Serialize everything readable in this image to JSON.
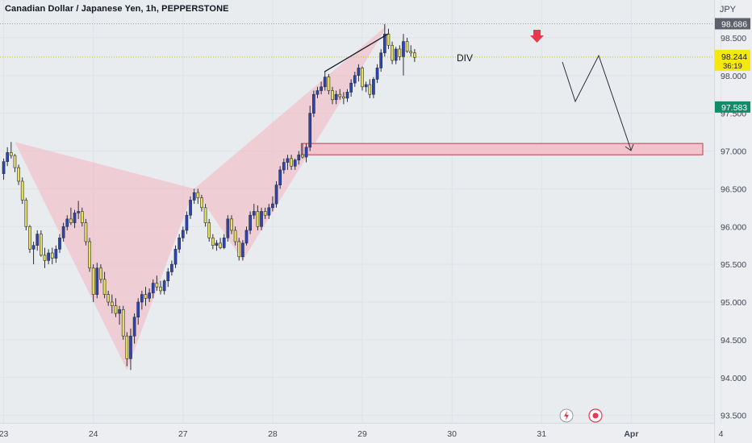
{
  "chart_data": {
    "type": "candlestick",
    "title": "Canadian Dollar / Japanese Yen, 1h, PEPPERSTONE",
    "currency": "JPY",
    "ylim": [
      93.4,
      99.0
    ],
    "y_ticks": [
      93.5,
      94.0,
      94.5,
      95.0,
      95.5,
      96.0,
      96.5,
      97.0,
      97.5,
      98.0,
      98.5
    ],
    "y_tick_labels": [
      "93.500",
      "94.000",
      "94.500",
      "95.000",
      "95.500",
      "96.000",
      "96.500",
      "97.000",
      "97.500",
      "98.000",
      "98.500"
    ],
    "x_ticks": [
      0,
      24,
      48,
      72,
      96,
      120,
      144,
      168,
      192
    ],
    "x_tick_labels": [
      "23",
      "24",
      "27",
      "28",
      "29",
      "30",
      "31",
      "Apr",
      "4"
    ],
    "candles": [
      [
        96.7,
        96.9,
        96.62,
        96.86
      ],
      [
        96.86,
        97.05,
        96.8,
        96.98
      ],
      [
        96.98,
        97.12,
        96.9,
        96.94
      ],
      [
        96.94,
        96.96,
        96.72,
        96.78
      ],
      [
        96.78,
        96.82,
        96.55,
        96.6
      ],
      [
        96.6,
        96.65,
        96.3,
        96.35
      ],
      [
        96.35,
        96.38,
        95.95,
        96.0
      ],
      [
        96.0,
        96.02,
        95.65,
        95.7
      ],
      [
        95.7,
        95.8,
        95.5,
        95.75
      ],
      [
        95.75,
        95.95,
        95.68,
        95.9
      ],
      [
        95.9,
        95.95,
        95.6,
        95.62
      ],
      [
        95.62,
        95.72,
        95.45,
        95.55
      ],
      [
        95.55,
        95.7,
        95.5,
        95.65
      ],
      [
        95.65,
        95.72,
        95.5,
        95.58
      ],
      [
        95.58,
        95.75,
        95.52,
        95.7
      ],
      [
        95.7,
        95.9,
        95.65,
        95.85
      ],
      [
        95.85,
        96.05,
        95.8,
        96.0
      ],
      [
        96.0,
        96.15,
        95.95,
        96.1
      ],
      [
        96.1,
        96.25,
        96.02,
        96.05
      ],
      [
        96.05,
        96.22,
        95.98,
        96.18
      ],
      [
        96.18,
        96.34,
        96.1,
        96.2
      ],
      [
        96.2,
        96.25,
        96.0,
        96.05
      ],
      [
        96.05,
        96.1,
        95.75,
        95.8
      ],
      [
        95.8,
        95.85,
        95.4,
        95.45
      ],
      [
        95.45,
        95.5,
        95.0,
        95.1
      ],
      [
        95.1,
        95.52,
        95.05,
        95.45
      ],
      [
        95.45,
        95.5,
        95.25,
        95.3
      ],
      [
        95.3,
        95.4,
        95.05,
        95.1
      ],
      [
        95.1,
        95.15,
        94.95,
        95.0
      ],
      [
        95.0,
        95.1,
        94.85,
        94.95
      ],
      [
        94.95,
        95.05,
        94.8,
        94.85
      ],
      [
        94.85,
        94.95,
        94.7,
        94.9
      ],
      [
        94.9,
        94.95,
        94.5,
        94.55
      ],
      [
        94.55,
        94.6,
        94.15,
        94.25
      ],
      [
        94.25,
        94.65,
        94.1,
        94.55
      ],
      [
        94.55,
        94.85,
        94.45,
        94.8
      ],
      [
        94.8,
        95.05,
        94.7,
        95.0
      ],
      [
        95.0,
        95.15,
        94.9,
        95.1
      ],
      [
        95.1,
        95.2,
        94.95,
        95.05
      ],
      [
        95.05,
        95.18,
        95.0,
        95.12
      ],
      [
        95.12,
        95.3,
        95.05,
        95.25
      ],
      [
        95.25,
        95.35,
        95.15,
        95.2
      ],
      [
        95.2,
        95.28,
        95.1,
        95.15
      ],
      [
        95.15,
        95.3,
        95.1,
        95.28
      ],
      [
        95.28,
        95.45,
        95.2,
        95.4
      ],
      [
        95.4,
        95.55,
        95.35,
        95.5
      ],
      [
        95.5,
        95.75,
        95.45,
        95.7
      ],
      [
        95.7,
        95.9,
        95.65,
        95.85
      ],
      [
        95.85,
        96.0,
        95.8,
        95.95
      ],
      [
        95.95,
        96.2,
        95.9,
        96.15
      ],
      [
        96.15,
        96.4,
        96.1,
        96.35
      ],
      [
        96.35,
        96.5,
        96.3,
        96.45
      ],
      [
        96.45,
        96.5,
        96.3,
        96.38
      ],
      [
        96.38,
        96.42,
        96.2,
        96.25
      ],
      [
        96.25,
        96.3,
        96.0,
        96.05
      ],
      [
        96.05,
        96.1,
        95.8,
        95.85
      ],
      [
        95.85,
        95.9,
        95.7,
        95.75
      ],
      [
        95.75,
        95.82,
        95.68,
        95.78
      ],
      [
        95.78,
        95.85,
        95.7,
        95.72
      ],
      [
        95.72,
        95.9,
        95.7,
        95.85
      ],
      [
        95.85,
        96.15,
        95.8,
        96.1
      ],
      [
        96.1,
        96.15,
        95.9,
        95.95
      ],
      [
        95.95,
        96.0,
        95.75,
        95.8
      ],
      [
        95.8,
        95.85,
        95.55,
        95.6
      ],
      [
        95.6,
        95.82,
        95.55,
        95.78
      ],
      [
        95.78,
        96.0,
        95.75,
        95.95
      ],
      [
        95.95,
        96.2,
        95.9,
        96.15
      ],
      [
        96.15,
        96.3,
        96.1,
        96.2
      ],
      [
        96.2,
        96.28,
        95.95,
        96.0
      ],
      [
        96.0,
        96.25,
        95.95,
        96.2
      ],
      [
        96.2,
        96.25,
        96.1,
        96.15
      ],
      [
        96.15,
        96.3,
        96.1,
        96.25
      ],
      [
        96.25,
        96.4,
        96.2,
        96.3
      ],
      [
        96.3,
        96.6,
        96.25,
        96.55
      ],
      [
        96.55,
        96.8,
        96.5,
        96.75
      ],
      [
        96.75,
        96.9,
        96.7,
        96.85
      ],
      [
        96.85,
        96.95,
        96.75,
        96.9
      ],
      [
        96.9,
        96.95,
        96.75,
        96.8
      ],
      [
        96.8,
        96.9,
        96.75,
        96.88
      ],
      [
        96.88,
        97.0,
        96.82,
        96.95
      ],
      [
        96.95,
        97.1,
        96.9,
        96.92
      ],
      [
        96.92,
        97.1,
        96.85,
        97.05
      ],
      [
        97.05,
        97.6,
        97.0,
        97.5
      ],
      [
        97.5,
        97.8,
        97.45,
        97.75
      ],
      [
        97.75,
        97.85,
        97.7,
        97.8
      ],
      [
        97.8,
        97.92,
        97.75,
        97.85
      ],
      [
        97.85,
        98.05,
        97.8,
        97.98
      ],
      [
        97.98,
        98.02,
        97.75,
        97.8
      ],
      [
        97.8,
        97.85,
        97.62,
        97.68
      ],
      [
        97.68,
        97.8,
        97.62,
        97.75
      ],
      [
        97.75,
        97.82,
        97.68,
        97.72
      ],
      [
        97.72,
        97.78,
        97.62,
        97.7
      ],
      [
        97.7,
        97.82,
        97.65,
        97.78
      ],
      [
        97.78,
        97.95,
        97.72,
        97.9
      ],
      [
        97.9,
        98.05,
        97.85,
        98.0
      ],
      [
        98.0,
        98.15,
        97.92,
        98.1
      ],
      [
        98.1,
        98.12,
        97.8,
        97.85
      ],
      [
        97.85,
        97.92,
        97.78,
        97.88
      ],
      [
        97.88,
        97.95,
        97.7,
        97.75
      ],
      [
        97.75,
        97.98,
        97.7,
        97.95
      ],
      [
        97.95,
        98.15,
        97.9,
        98.1
      ],
      [
        98.1,
        98.35,
        98.05,
        98.3
      ],
      [
        98.3,
        98.68,
        98.25,
        98.55
      ],
      [
        98.55,
        98.62,
        98.35,
        98.4
      ],
      [
        98.4,
        98.45,
        98.15,
        98.2
      ],
      [
        98.2,
        98.38,
        98.15,
        98.35
      ],
      [
        98.35,
        98.4,
        98.2,
        98.25
      ],
      [
        98.25,
        98.55,
        98.0,
        98.45
      ],
      [
        98.45,
        98.5,
        98.3,
        98.32
      ],
      [
        98.32,
        98.4,
        98.25,
        98.3
      ],
      [
        98.3,
        98.35,
        98.18,
        98.24
      ]
    ],
    "annotations": {
      "div_label": "DIV",
      "zone_low": 96.95,
      "zone_high": 97.1,
      "last_price_label": "98.244",
      "countdown_label": "36:19",
      "high_label": "98.686",
      "low_label": "97.583",
      "high_value": 98.686,
      "low_value": 97.583,
      "last_value": 98.244
    },
    "colors": {
      "bull": "#2b44b8",
      "bear": "#e8e05a",
      "wick": "#2a2e39",
      "pattern_fill": "#f3b4bd",
      "zone_fill": "#f2c3cb",
      "zone_stroke": "#b3424f",
      "last_price": "#f5e70f",
      "low_badge": "#0f8c68",
      "high_badge": "#5d606b",
      "arrow": "#e53950"
    }
  }
}
